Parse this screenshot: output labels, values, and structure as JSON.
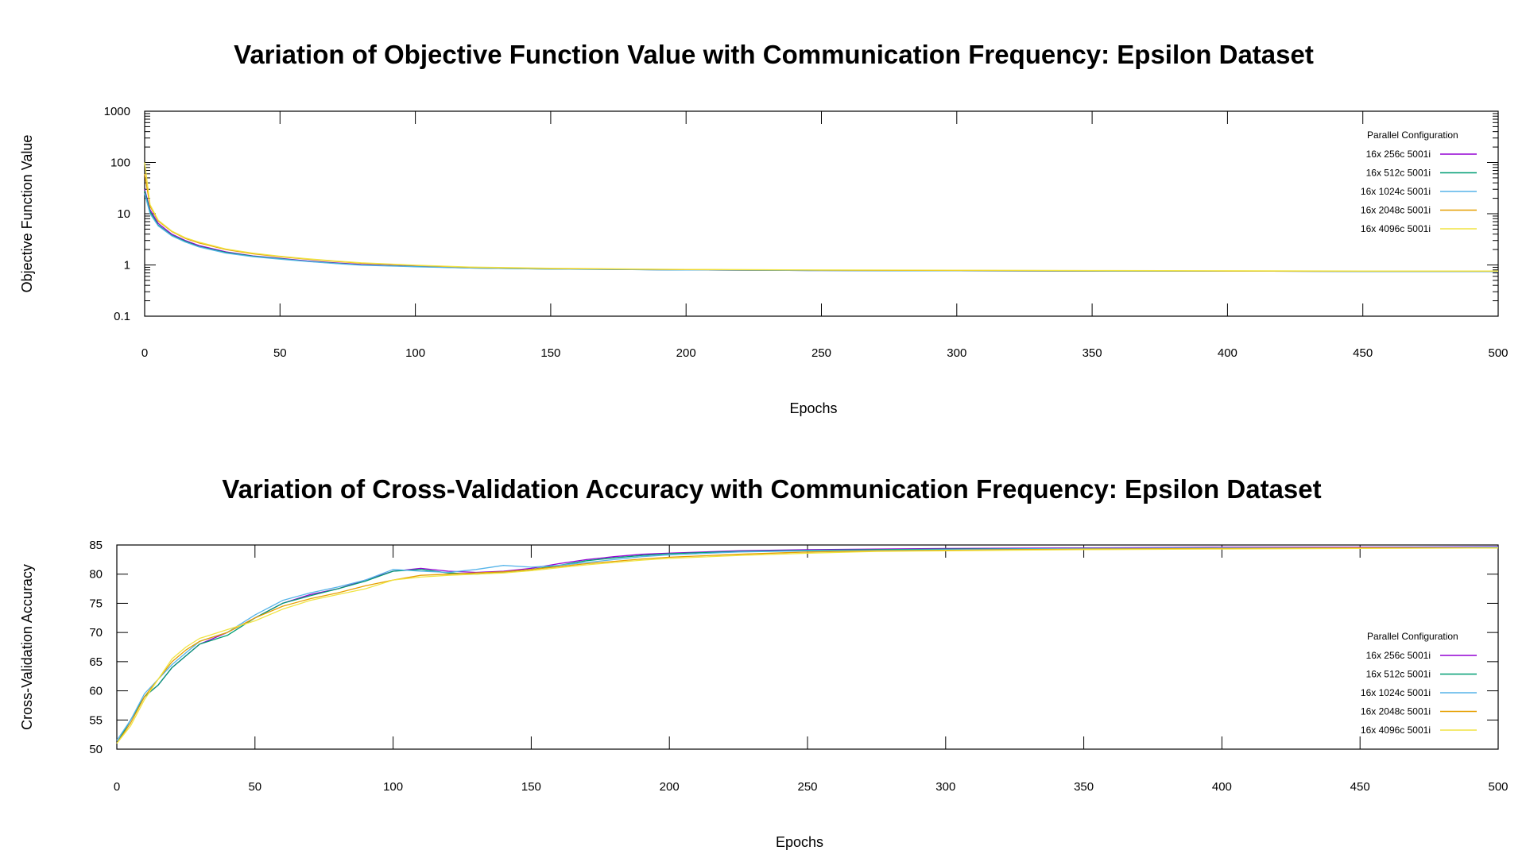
{
  "chart_data": [
    {
      "type": "line",
      "title": "Variation of Objective Function Value with Communication Frequency: Epsilon Dataset",
      "xlabel": "Epochs",
      "ylabel": "Objective Function Value",
      "xlim": [
        0,
        500
      ],
      "ylim": [
        0.1,
        1000
      ],
      "yscale": "log",
      "grid": false,
      "legend_title": "Parallel Configuration",
      "legend_position": "top-right",
      "x_ticks": [
        "0",
        "50",
        "100",
        "150",
        "200",
        "250",
        "300",
        "350",
        "400",
        "450",
        "500"
      ],
      "y_ticks": [
        "0.1",
        "1",
        "10",
        "100",
        "1000"
      ],
      "x": [
        0,
        2,
        5,
        10,
        15,
        20,
        30,
        40,
        50,
        60,
        70,
        80,
        100,
        120,
        150,
        200,
        250,
        300,
        350,
        400,
        450,
        500
      ],
      "series": [
        {
          "name": "16x 256c 5001i",
          "color": "#9400d3",
          "values": [
            30,
            12,
            6.5,
            4.0,
            3.0,
            2.4,
            1.8,
            1.5,
            1.35,
            1.2,
            1.1,
            1.02,
            0.94,
            0.88,
            0.84,
            0.8,
            0.78,
            0.77,
            0.76,
            0.76,
            0.75,
            0.75
          ]
        },
        {
          "name": "16x 512c 5001i",
          "color": "#009e73",
          "values": [
            28,
            11,
            6.0,
            3.8,
            2.9,
            2.3,
            1.75,
            1.48,
            1.32,
            1.18,
            1.08,
            1.0,
            0.93,
            0.87,
            0.83,
            0.8,
            0.78,
            0.77,
            0.76,
            0.76,
            0.75,
            0.75
          ]
        },
        {
          "name": "16x 1024c 5001i",
          "color": "#56b4e9",
          "values": [
            25,
            10,
            5.8,
            3.7,
            2.8,
            2.25,
            1.7,
            1.45,
            1.3,
            1.17,
            1.07,
            0.99,
            0.92,
            0.87,
            0.83,
            0.8,
            0.78,
            0.77,
            0.76,
            0.76,
            0.75,
            0.75
          ]
        },
        {
          "name": "16x 2048c 5001i",
          "color": "#e69f00",
          "values": [
            60,
            14,
            7.2,
            4.5,
            3.3,
            2.7,
            2.0,
            1.65,
            1.45,
            1.3,
            1.18,
            1.08,
            0.98,
            0.9,
            0.85,
            0.81,
            0.79,
            0.78,
            0.77,
            0.76,
            0.76,
            0.76
          ]
        },
        {
          "name": "16x 4096c 5001i",
          "color": "#f0e442",
          "values": [
            100,
            15,
            7.5,
            4.6,
            3.4,
            2.8,
            2.05,
            1.7,
            1.48,
            1.32,
            1.2,
            1.1,
            0.99,
            0.91,
            0.86,
            0.82,
            0.8,
            0.79,
            0.78,
            0.77,
            0.76,
            0.76
          ]
        }
      ]
    },
    {
      "type": "line",
      "title": "Variation of Cross-Validation Accuracy with Communication Frequency: Epsilon Dataset",
      "xlabel": "Epochs",
      "ylabel": "Cross-Validation Accuracy",
      "xlim": [
        0,
        500
      ],
      "ylim": [
        50,
        85
      ],
      "yscale": "linear",
      "grid": false,
      "legend_title": "Parallel Configuration",
      "legend_position": "bottom-right",
      "x_ticks": [
        "0",
        "50",
        "100",
        "150",
        "200",
        "250",
        "300",
        "350",
        "400",
        "450",
        "500"
      ],
      "y_ticks": [
        "50",
        "55",
        "60",
        "65",
        "70",
        "75",
        "80",
        "85"
      ],
      "x": [
        0,
        5,
        10,
        15,
        20,
        25,
        30,
        40,
        50,
        60,
        70,
        80,
        90,
        100,
        110,
        120,
        130,
        140,
        150,
        160,
        170,
        180,
        190,
        200,
        225,
        250,
        275,
        300,
        350,
        400,
        450,
        500
      ],
      "series": [
        {
          "name": "16x 256c 5001i",
          "color": "#9400d3",
          "values": [
            51,
            55,
            59,
            61,
            64,
            66,
            68,
            70,
            72.5,
            75,
            76.5,
            77.5,
            79,
            80.5,
            81,
            80.5,
            80.3,
            80.5,
            81,
            81.8,
            82.5,
            83,
            83.4,
            83.6,
            84,
            84.2,
            84.3,
            84.4,
            84.5,
            84.6,
            84.6,
            84.7
          ]
        },
        {
          "name": "16x 512c 5001i",
          "color": "#009e73",
          "values": [
            51,
            55,
            59,
            61,
            64,
            66,
            68,
            69.5,
            72.5,
            75,
            76.3,
            77.5,
            78.8,
            80.5,
            80.8,
            80.2,
            80,
            80.3,
            80.8,
            81.5,
            82.3,
            82.8,
            83.2,
            83.5,
            83.9,
            84.1,
            84.2,
            84.3,
            84.4,
            84.5,
            84.5,
            84.6
          ]
        },
        {
          "name": "16x 1024c 5001i",
          "color": "#56b4e9",
          "values": [
            51.5,
            55,
            59.5,
            62,
            64.5,
            66.5,
            68.5,
            70,
            73,
            75.5,
            76.8,
            77.8,
            79,
            80.8,
            80.5,
            80.3,
            80.8,
            81.5,
            81.2,
            81.5,
            82,
            82.5,
            83,
            83.3,
            83.8,
            84,
            84.1,
            84.2,
            84.4,
            84.5,
            84.5,
            84.6
          ]
        },
        {
          "name": "16x 2048c 5001i",
          "color": "#e69f00",
          "values": [
            51,
            54.5,
            59,
            62,
            65,
            67,
            68.5,
            70,
            72.5,
            74.5,
            75.8,
            76.8,
            78,
            79,
            79.8,
            80,
            80.2,
            80.4,
            80.8,
            81.3,
            81.8,
            82.2,
            82.6,
            82.9,
            83.4,
            83.8,
            84,
            84.1,
            84.3,
            84.4,
            84.5,
            84.5
          ]
        },
        {
          "name": "16x 4096c 5001i",
          "color": "#f0e442",
          "values": [
            51,
            54,
            58.5,
            62,
            65.5,
            67.5,
            69,
            70.5,
            72,
            74,
            75.5,
            76.5,
            77.5,
            79,
            79.5,
            79.8,
            80,
            80.2,
            80.6,
            81.1,
            81.6,
            82,
            82.4,
            82.7,
            83.2,
            83.6,
            83.9,
            84,
            84.2,
            84.3,
            84.4,
            84.5
          ]
        }
      ]
    }
  ]
}
